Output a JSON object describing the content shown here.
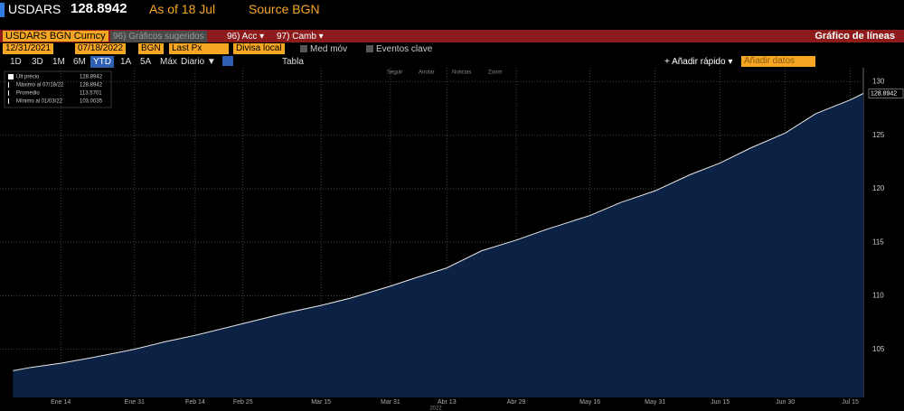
{
  "header": {
    "ticker": "USDARS",
    "price": "128.8942",
    "as_of": "As of 18 Jul",
    "source": "Source BGN"
  },
  "toolbar": {
    "security": "USDARS BGN Curncy",
    "suggested": "96) Gráficos sugeridos",
    "acc": "96) Acc ▾",
    "camb": "97) Camb ▾",
    "chart_type": "Gráfico de líneas"
  },
  "settings": {
    "start": "12/31/2021",
    "end": "07/18/2022",
    "source": "BGN",
    "field": "Last Px",
    "currency": "Divisa local",
    "mov_avg": "Med móv",
    "events": "Eventos clave"
  },
  "periods": [
    "1D",
    "3D",
    "1M",
    "6M",
    "YTD",
    "1A",
    "5A",
    "Máx"
  ],
  "frequency": "Diario ▼",
  "table": "Tabla",
  "quick_add": "+ Añadir rápido ▾",
  "add_data": "Añadir datos",
  "tools": [
    "Seguir",
    "Anotar",
    "Noticias",
    "Zoom"
  ],
  "chart_data": {
    "type": "area",
    "x": [
      "2022-01-03",
      "2022-01-07",
      "2022-01-14",
      "2022-01-21",
      "2022-01-31",
      "2022-02-07",
      "2022-02-14",
      "2022-02-25",
      "2022-03-07",
      "2022-03-15",
      "2022-03-22",
      "2022-03-31",
      "2022-04-06",
      "2022-04-13",
      "2022-04-21",
      "2022-04-29",
      "2022-05-06",
      "2022-05-16",
      "2022-05-23",
      "2022-05-31",
      "2022-06-08",
      "2022-06-15",
      "2022-06-22",
      "2022-06-30",
      "2022-07-07",
      "2022-07-15",
      "2022-07-18"
    ],
    "series": [
      {
        "name": "USDARS",
        "color": "#e8e8e8",
        "fill": "#0c2244",
        "values": [
          103.0,
          103.3,
          103.7,
          104.2,
          105.0,
          105.7,
          106.3,
          107.4,
          108.4,
          109.1,
          109.8,
          110.9,
          111.7,
          112.6,
          114.2,
          115.2,
          116.2,
          117.5,
          118.7,
          119.8,
          121.3,
          122.4,
          123.8,
          125.2,
          127.0,
          128.3,
          128.8942
        ]
      }
    ],
    "xlim": [
      "2021-12-31",
      "2022-07-18"
    ],
    "xticks": [
      {
        "value": "2022-01-14",
        "label": "Ene 14"
      },
      {
        "value": "2022-01-31",
        "label": "Ene 31"
      },
      {
        "value": "2022-02-14",
        "label": "Feb 14"
      },
      {
        "value": "2022-02-25",
        "label": "Feb 25"
      },
      {
        "value": "2022-03-15",
        "label": "Mar 15"
      },
      {
        "value": "2022-03-31",
        "label": "Mar 31"
      },
      {
        "value": "2022-04-13",
        "label": "Abr 13"
      },
      {
        "value": "2022-04-29",
        "label": "Abr 29"
      },
      {
        "value": "2022-05-16",
        "label": "May 16"
      },
      {
        "value": "2022-05-31",
        "label": "May 31"
      },
      {
        "value": "2022-06-15",
        "label": "Jun 15"
      },
      {
        "value": "2022-06-30",
        "label": "Jun 30"
      },
      {
        "value": "2022-07-15",
        "label": "Jul 15"
      }
    ],
    "x_axis_year": "2022",
    "ylim": [
      100.5,
      131.3
    ],
    "yticks": [
      105,
      110,
      115,
      120,
      125,
      130
    ],
    "grid": true,
    "stats": [
      {
        "label": "Últ precio",
        "value": 128.8942
      },
      {
        "label": "Máximo al 07/18/22",
        "value": 128.8942
      },
      {
        "label": "Promedio",
        "value": 113.5701
      },
      {
        "label": "Mínimo al 01/03/22",
        "value": 103.0035
      }
    ]
  }
}
